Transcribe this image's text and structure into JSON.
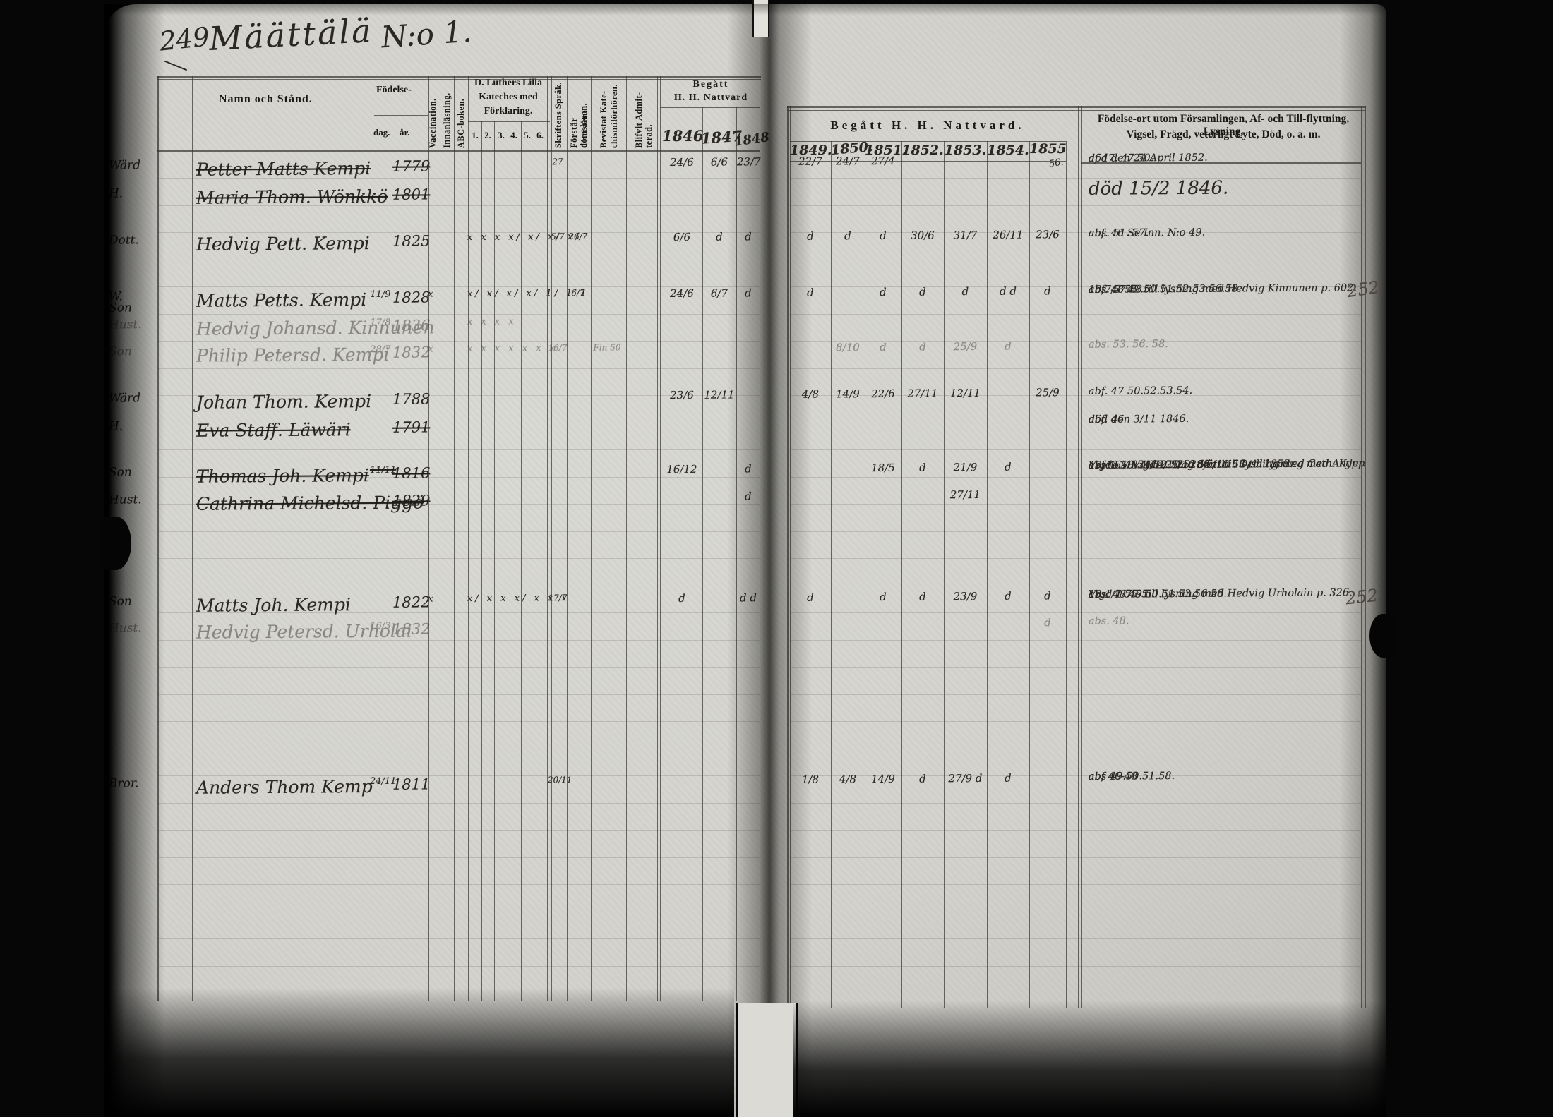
{
  "title": {
    "page_number": "249",
    "name": "Määttälä",
    "series": "N:o 1."
  },
  "left_header": {
    "namn": "Namn och Stånd.",
    "fodelse": "Födelse-",
    "dag": "dag.",
    "ar": "år.",
    "vaccination": "Vaccination.",
    "innanlasning": "Innanläsning.",
    "abcboken": "ABC-boken.",
    "kateches_line1": "D. Luthers Lilla",
    "kateches_line2": "Kateches med",
    "kateches_line3": "Förklaring.",
    "kateches_cols": [
      "1.",
      "2.",
      "3.",
      "4.",
      "5.",
      "6."
    ],
    "skriftens": "Skriftens Språk.",
    "forstar_line1": "Förstår Christen-",
    "forstar_line2": "domsläran.",
    "bevistat_line1": "Bevistat Kate-",
    "bevistat_line2": "chismiförhören.",
    "admit_line1": "Blifvit Admit-",
    "admit_line2": "terad.",
    "begatt_line1": "Begått",
    "begatt_line2": "H. H. Nattvard",
    "years": [
      "1846",
      "1847",
      "1848"
    ]
  },
  "right_header": {
    "begatt": "Begått  H.  H.  Nattvard.",
    "years": [
      "1849.",
      "1850.",
      "1851.",
      "1852.",
      "1853.",
      "1854.",
      "1855"
    ],
    "year_note": "56.",
    "remarks_line1": "Födelse-ort utom Församlingen, Af- och Till-flyttning, Lysning,",
    "remarks_line2": "Vigsel, Frägd, veterligt Lyte, Död, o. a. m."
  },
  "margin_refs": {
    "ref1": "252",
    "ref2": "252"
  },
  "rows": [
    {
      "margin": "Wärd",
      "name": "Petter Matts Kempi",
      "ar": "1779",
      "crossed": true,
      "skrift": "27",
      "y1846": "24/6",
      "y1847": "6/6",
      "y1848": "23/7",
      "y1849": "22/7",
      "y1850": "24/7",
      "y1851": "27/4",
      "remark1": "af 47. 47.50.",
      "remark2": "död den 24 April 1852."
    },
    {
      "margin": "H.",
      "name": "Maria Thom. Wönkkö",
      "ar": "1801",
      "crossed": true,
      "big": true,
      "remark1": "död 15/2 1846."
    },
    {
      "margin": "Dott.",
      "name": "Hedvig Pett. Kempi",
      "ar": "1825",
      "katech": "x x x x/ x/ x/ x/",
      "skrift": "5/7",
      "forstar": "26/7",
      "y1846": "6/6",
      "y1847": "d",
      "y1848": "d",
      "y1849": "d",
      "y1850": "d",
      "y1851": "d",
      "y1852": "30/6",
      "y1853": "31/7",
      "y1854": "26/11",
      "y1855": "23/6",
      "remark1": "abf. 46   Se Inn. N:o 49.",
      "remark2": "abs. 51. 57."
    },
    {
      "margin": "W.\nSon",
      "name": "Matts Petts. Kempi",
      "dag": "11/9",
      "ar": "1828",
      "vacc": "x",
      "katech": "x/ x/ x/ x/ 1/ 1 1",
      "forstar": "6/7",
      "y1846": "24/6",
      "y1847": "6/7",
      "y1848": "d",
      "y1849": "d",
      "y1851": "d",
      "y1852": "d",
      "y1853": "d",
      "y1854": "d d",
      "y1855": "d",
      "remark1": "abf. 48 49.50.51.52.53.56.58.",
      "remark2": "18 7/3 55. till lysning med Hedvig Kinnunen p. 602.",
      "remark3": "abs. 57.58."
    },
    {
      "margin": "Hust.",
      "name": "Hedvig Johansd. Kinnunen",
      "dag": "17/8",
      "ar": "1836",
      "faint": true,
      "katech": "x x x x"
    },
    {
      "margin": "Son",
      "name": "Philip Petersd. Kempi",
      "dag": "28/7",
      "ar": "1832",
      "faint": true,
      "vacc": "x",
      "katech": "x x x x x x x",
      "skrift": "16/7",
      "bevistat": "Fin 50",
      "y1850": "8/10",
      "y1851": "d",
      "y1852": "d",
      "y1853": "25/9",
      "y1854": "d",
      "remark1": "abs. 53. 56. 58."
    },
    {
      "margin": "Wärd",
      "name": "Johan Thom. Kempi",
      "ar": "1788",
      "y1846": "23/6",
      "y1847": "12/11",
      "y1849": "4/8",
      "y1850": "14/9",
      "y1851": "22/6",
      "y1852": "27/11",
      "y1853": "12/11",
      "y1855": "25/9",
      "remark1": "abf. 47 50.52.53.54."
    },
    {
      "margin": "H.",
      "name": "Eva Staff. Läwäri",
      "ar": "1791",
      "crossed": true,
      "remark1": "abf. 46",
      "remark2": "död den 3/11 1846."
    },
    {
      "margin": "Son",
      "name": "Thomas Joh. Kempi",
      "dag": "11/11",
      "ar": "1816",
      "crossed": true,
      "y1846": "16/12",
      "y1848": "d",
      "y1851": "18/5",
      "y1852": "d",
      "y1853": "21/9",
      "y1854": "d",
      "remark1": "abf 46-48  18 3/10 52. fått till lysning med Cath. Kyppä p. 315.",
      "remark2": "47 49.50.51.52.   Dag den 11. Oct. 1853.",
      "remark3": "Vigde 18 24/10 52.  18 6/10 53 till lysning med Anders Makero p. 189.",
      "remark4": "abs. 53. Vigde 28/10 55."
    },
    {
      "margin": "Hust.",
      "name": "Cathrina Michelsd. Piggö",
      "ar": "1829",
      "crossed": true,
      "y1848": "d",
      "y1853": "27/11"
    },
    {
      "margin": "Son",
      "name": "Matts Joh. Kempi",
      "ar": "1822",
      "vacc": "x",
      "katech": "x/ x x x/ x x x",
      "skrift": "17/7",
      "y1846": "d",
      "y1848": "d d",
      "y1849": "d",
      "y1851": "d",
      "y1852": "d",
      "y1853": "23/9",
      "y1854": "d",
      "y1855": "d",
      "remark1": "18 1/7 55. till lysning med Hedvig Urholain p. 326.",
      "remark2": "abs. 48 49.50.51.53.56.58.",
      "remark3": "Vigd 1/7 55."
    },
    {
      "margin": "Hust.",
      "name": "Hedvig Petersd. Urholai",
      "dag": "16/3",
      "ar": "1832",
      "faint": true,
      "y1855": "d",
      "remark1": "abs. 48."
    },
    {
      "margin": "Bror.",
      "name": "Anders Thom Kemp",
      "dag": "24/11",
      "ar": "1811",
      "skrift": "20/11",
      "y1849": "1/8",
      "y1850": "4/8",
      "y1851": "14/9",
      "y1852": "d",
      "y1853": "27/9 d",
      "y1854": "d",
      "remark1": "abf 46-48",
      "remark2": "abs 49.50.51.58."
    }
  ]
}
